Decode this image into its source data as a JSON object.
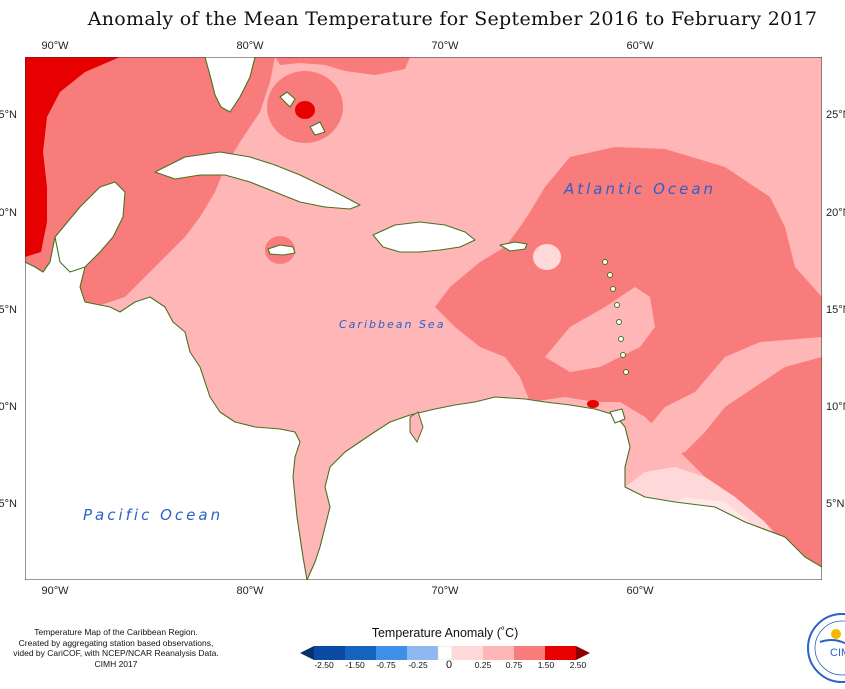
{
  "title": "Anomaly of the Mean Temperature for September 2016 to February 2017",
  "axes": {
    "top_lon": [
      "90°W",
      "80°W",
      "70°W",
      "60°W"
    ],
    "bottom_lon": [
      "90°W",
      "80°W",
      "70°W",
      "60°W"
    ],
    "left_lat": [
      "5°N",
      "0°N",
      "5°N",
      "0°N",
      "5°N"
    ],
    "right_lat": [
      "25°N",
      "20°N",
      "15°N",
      "10°N",
      "5°N"
    ]
  },
  "labels": {
    "atlantic": "Atlantic Ocean",
    "caribbean": "Caribbean Sea",
    "pacific": "Pacific Ocean"
  },
  "caption": {
    "line1": "Temperature Map of the Caribbean Region.",
    "line2": "Created by aggregating station based observations,",
    "line3": "vided by CariCOF, with NCEP/NCAR Reanalysis Data.",
    "line4": "CIMH 2017"
  },
  "legend": {
    "title": "Temperature Anomaly (˚C)",
    "ticks": [
      "-2.50",
      "-1.50",
      "-0.75",
      "-0.25",
      "0",
      "0.25",
      "0.75",
      "1.50",
      "2.50"
    ],
    "colors": [
      "#08306b",
      "#1565c0",
      "#3d8fe8",
      "#8fb8f0",
      "#c9dcf8",
      "#ffffff",
      "#ffd9d9",
      "#ffb6b6",
      "#f97c7c",
      "#e60000",
      "#8b0000"
    ]
  },
  "logo": {
    "text": "CIM"
  }
}
